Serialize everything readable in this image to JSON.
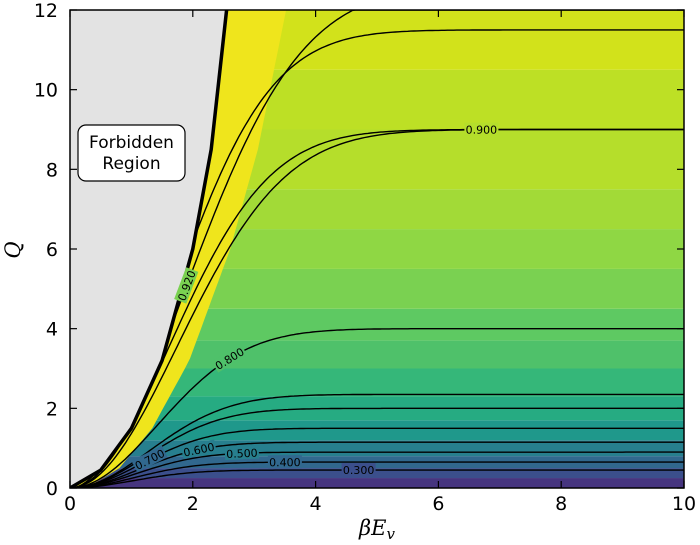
{
  "chart_data": {
    "type": "contour",
    "xlabel": "βE",
    "xlabel_sub": "v",
    "ylabel": "Q",
    "xlim": [
      0,
      10
    ],
    "ylim": [
      0,
      12
    ],
    "x_ticks": [
      "0",
      "2",
      "4",
      "6",
      "8",
      "10"
    ],
    "y_ticks": [
      "0",
      "2",
      "4",
      "6",
      "8",
      "10",
      "12"
    ],
    "forbidden_region": {
      "label_line1": "Forbidden",
      "label_line2": "Region",
      "fill": "#e3e3e3"
    },
    "boundary_curve": [
      {
        "x": 0.0,
        "y": 0.0
      },
      {
        "x": 0.5,
        "y": 0.45
      },
      {
        "x": 1.0,
        "y": 1.5
      },
      {
        "x": 1.5,
        "y": 3.2
      },
      {
        "x": 2.0,
        "y": 6.0
      },
      {
        "x": 2.3,
        "y": 8.5
      },
      {
        "x": 2.55,
        "y": 12.0
      }
    ],
    "band_colors": [
      {
        "y": 0.0,
        "color": "#46357f"
      },
      {
        "y": 0.25,
        "color": "#3b4f8c"
      },
      {
        "y": 0.5,
        "color": "#31688e"
      },
      {
        "y": 0.8,
        "color": "#277f8e"
      },
      {
        "y": 1.2,
        "color": "#1f988b"
      },
      {
        "y": 1.7,
        "color": "#26ab82"
      },
      {
        "y": 2.3,
        "color": "#35b779"
      },
      {
        "y": 3.0,
        "color": "#4fc16a"
      },
      {
        "y": 3.7,
        "color": "#5ec962"
      },
      {
        "y": 4.5,
        "color": "#7ad151"
      },
      {
        "y": 5.5,
        "color": "#8fd744"
      },
      {
        "y": 6.5,
        "color": "#a2da37"
      },
      {
        "y": 7.5,
        "color": "#b5de2b"
      },
      {
        "y": 9.0,
        "color": "#bde025"
      },
      {
        "y": 10.5,
        "color": "#d2e21b"
      },
      {
        "y": 12.0,
        "color": "#d8e219"
      }
    ],
    "contours": [
      {
        "level": "0.300",
        "asymptote": 0.45,
        "rate": 0.9,
        "label_x": 4.7
      },
      {
        "level": "0.400",
        "asymptote": 0.65,
        "rate": 0.85,
        "label_x": 3.5
      },
      {
        "level": "0.500",
        "asymptote": 0.9,
        "rate": 0.8,
        "label_x": 2.8
      },
      {
        "level": "0.600",
        "asymptote": 1.15,
        "rate": 0.75,
        "label_x": 2.1
      },
      {
        "level": "0.700",
        "asymptote": 1.5,
        "rate": 0.7,
        "label_x": 1.3
      },
      {
        "level": "",
        "asymptote": 2.0,
        "rate": 0.6,
        "label_x": null
      },
      {
        "level": "",
        "asymptote": 2.35,
        "rate": 0.55,
        "label_x": null
      },
      {
        "level": "0.800",
        "asymptote": 4.0,
        "rate": 0.45,
        "label_x": 2.6
      },
      {
        "level": "",
        "asymptote": 9.0,
        "rate": 0.3,
        "label_x": null,
        "variant": "upper"
      },
      {
        "level": "0.900",
        "asymptote": 9.0,
        "rate": 0.35,
        "label_x": 6.7
      },
      {
        "level": "",
        "asymptote": 11.5,
        "rate": 0.35,
        "label_x": null
      },
      {
        "level": "0.920",
        "asymptote": 12.6,
        "rate": 0.26,
        "label_x": 1.9
      }
    ]
  }
}
